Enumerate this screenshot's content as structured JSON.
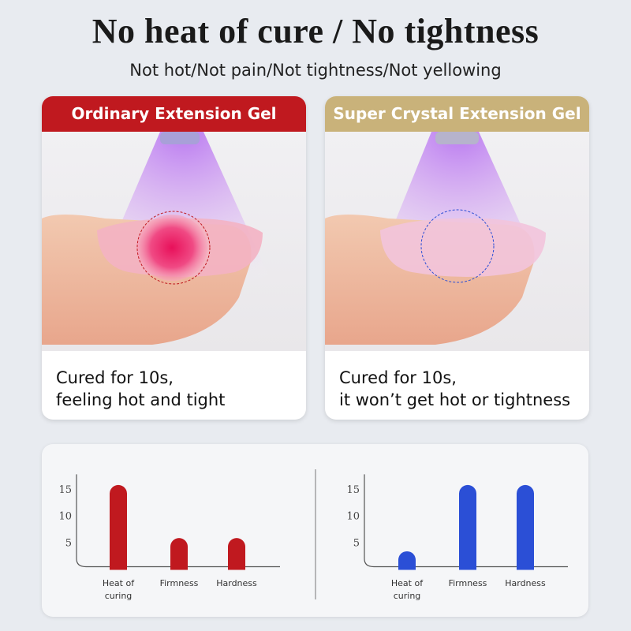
{
  "header": {
    "title": "No heat of cure / No tightness",
    "subtitle": "Not hot/Not pain/Not tightness/Not yellowing"
  },
  "panels": [
    {
      "title": "Ordinary Extension Gel",
      "caption": [
        "Cured for 10s,",
        "feeling hot and tight"
      ]
    },
    {
      "title": "Super Crystal Extension Gel",
      "caption": [
        "Cured for 10s,",
        "it won’t get hot or tightness"
      ]
    }
  ],
  "chart_data": [
    {
      "type": "bar",
      "categories": [
        "Heat of curing",
        "Firmness",
        "Hardness"
      ],
      "values": [
        16,
        6,
        6
      ],
      "color": "#c0191f",
      "ylim": [
        0,
        18
      ],
      "yticks": [
        5,
        10,
        15
      ],
      "grid": false
    },
    {
      "type": "bar",
      "categories": [
        "Heat of curing",
        "Firmness",
        "Hardness"
      ],
      "values": [
        3.5,
        16,
        16
      ],
      "color": "#2b4fd6",
      "ylim": [
        0,
        18
      ],
      "yticks": [
        5,
        10,
        15
      ],
      "grid": false
    }
  ]
}
